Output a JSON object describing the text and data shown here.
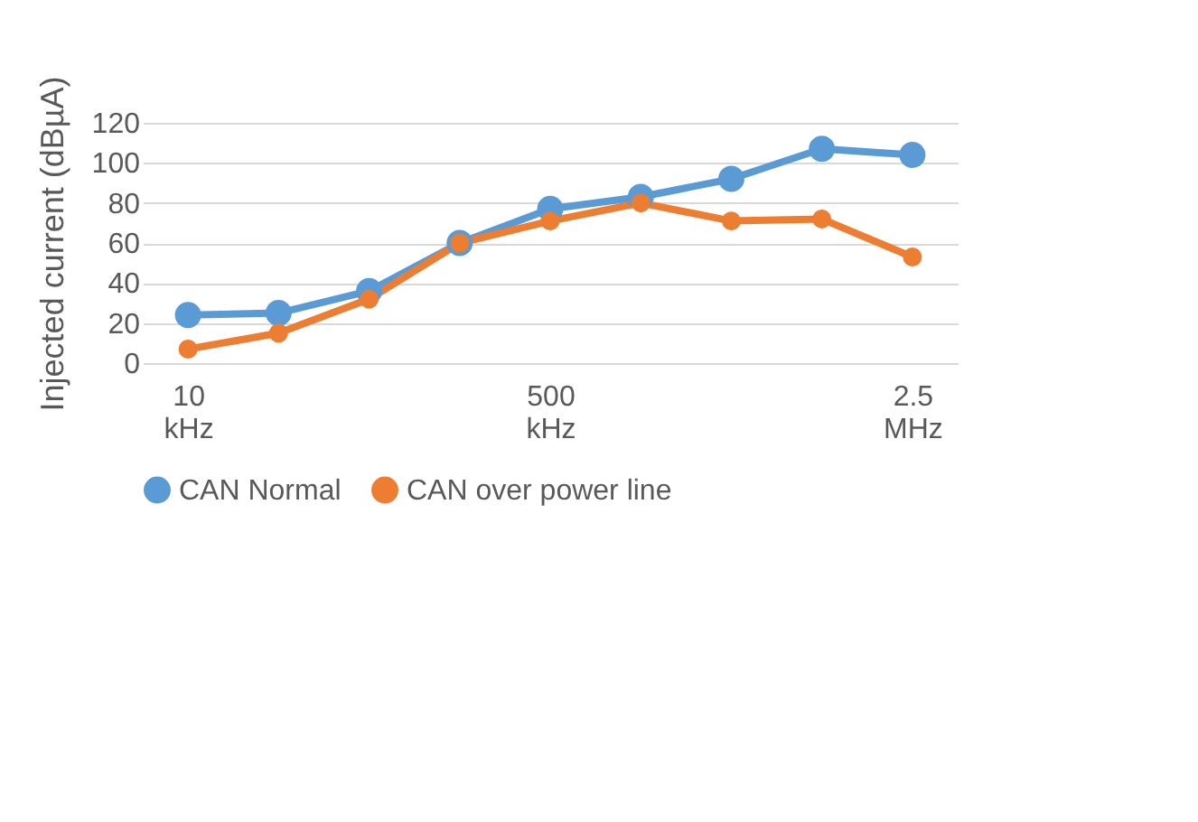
{
  "chart_data": {
    "type": "line",
    "ylabel": "Injected current (dBµA)",
    "categories": [
      "10 kHz",
      null,
      null,
      null,
      "500 kHz",
      null,
      null,
      null,
      "2.5 MHz"
    ],
    "series": [
      {
        "name": "CAN Normal",
        "color": "#5b9bd5",
        "values": [
          24,
          25,
          36,
          60,
          77,
          83,
          92,
          107,
          104
        ]
      },
      {
        "name": "CAN over power line",
        "color": "#ed7d31",
        "values": [
          7,
          15,
          32,
          60,
          71,
          80,
          71,
          72,
          53
        ]
      }
    ],
    "ylim": [
      0,
      120
    ],
    "yticks": [
      0,
      20,
      40,
      60,
      80,
      100,
      120
    ],
    "grid": "y",
    "legend": "bottom",
    "marker": "circle",
    "line_style": "solid"
  }
}
